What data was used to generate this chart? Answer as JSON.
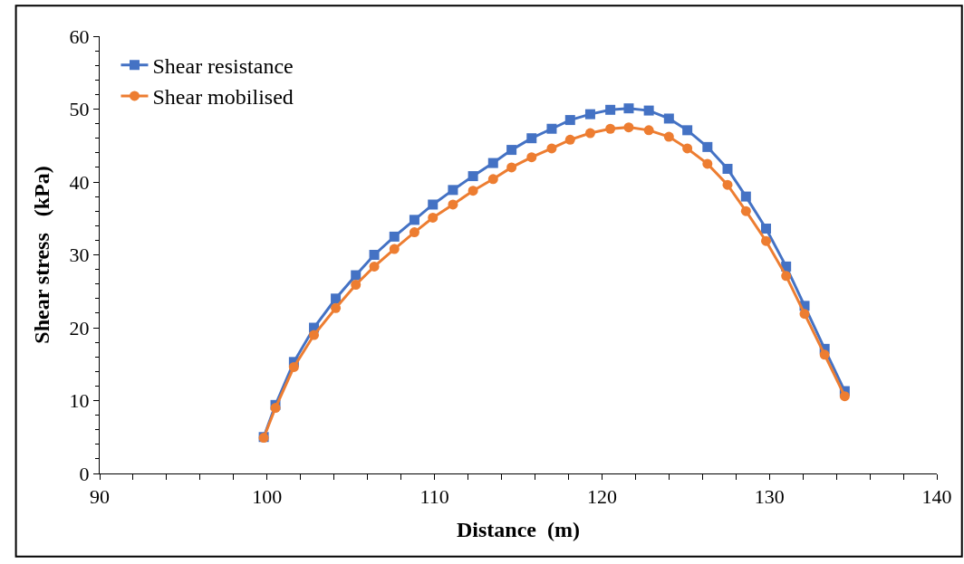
{
  "chart_data": {
    "type": "line",
    "xlabel": "Distance  (m)",
    "ylabel": "Shear stress   (kPa)",
    "x": [
      99.8,
      100.5,
      101.6,
      102.8,
      104.1,
      105.3,
      106.4,
      107.6,
      108.8,
      109.9,
      111.1,
      112.3,
      113.5,
      114.6,
      115.8,
      117.0,
      118.1,
      119.3,
      120.5,
      121.6,
      122.8,
      124.0,
      125.1,
      126.3,
      127.5,
      128.6,
      129.8,
      131.0,
      132.1,
      133.3,
      134.5
    ],
    "series": [
      {
        "name": "Shear resistance",
        "color": "#4472c4",
        "marker": "square",
        "values": [
          5.0,
          9.4,
          15.3,
          20.0,
          24.0,
          27.2,
          30.0,
          32.5,
          34.8,
          36.9,
          38.9,
          40.8,
          42.6,
          44.4,
          46.0,
          47.3,
          48.5,
          49.3,
          49.9,
          50.1,
          49.8,
          48.7,
          47.1,
          44.8,
          41.8,
          38.0,
          33.6,
          28.4,
          23.0,
          17.1,
          11.3
        ]
      },
      {
        "name": "Shear mobilised",
        "color": "#ed7d31",
        "marker": "circle",
        "values": [
          4.9,
          9.0,
          14.6,
          19.0,
          22.7,
          25.9,
          28.4,
          30.8,
          33.1,
          35.1,
          36.9,
          38.8,
          40.4,
          42.0,
          43.4,
          44.6,
          45.8,
          46.7,
          47.3,
          47.5,
          47.1,
          46.2,
          44.6,
          42.5,
          39.6,
          36.0,
          31.9,
          27.1,
          21.9,
          16.3,
          10.6
        ]
      }
    ],
    "xlim": [
      90,
      140
    ],
    "xticks": [
      90,
      100,
      110,
      120,
      130,
      140
    ],
    "ylim": [
      0,
      60
    ],
    "yticks": [
      0,
      10,
      20,
      30,
      40,
      50,
      60
    ],
    "legend": "top left",
    "line_style": "solid"
  }
}
